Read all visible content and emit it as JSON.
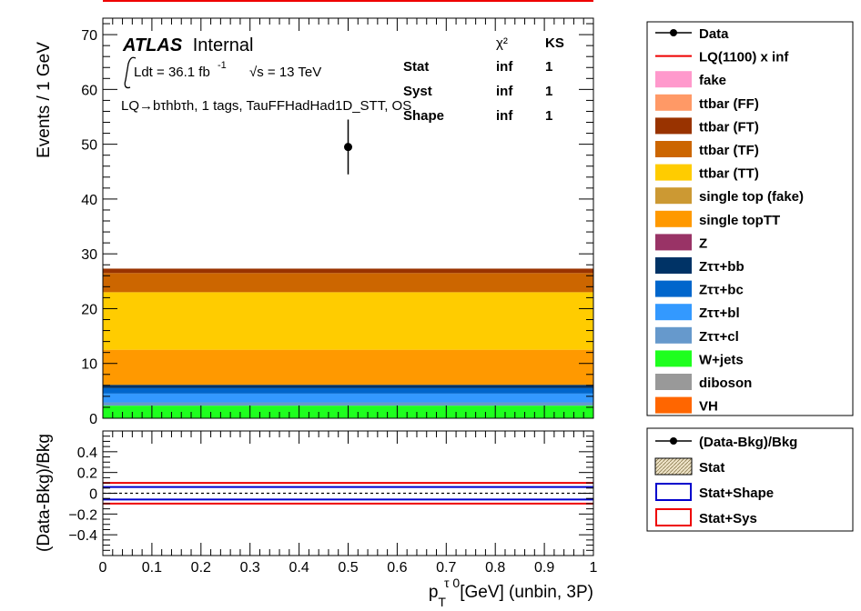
{
  "chart_data": [
    {
      "type": "area",
      "panel": "main",
      "ylabel": "Events / 1 GeV",
      "xlim": [
        0,
        1
      ],
      "ylim": [
        0,
        73
      ],
      "y_ticks": [
        0,
        10,
        20,
        30,
        40,
        50,
        60,
        70
      ],
      "x_ticks": [
        0,
        0.1,
        0.2,
        0.3,
        0.4,
        0.5,
        0.6,
        0.7,
        0.8,
        0.9,
        1
      ],
      "label_atlas": "ATLAS",
      "label_internal": "Internal",
      "lumi_text": "Ldt = 36.1 fb",
      "lumi_exp": "-1",
      "energy_text": "√s = 13 TeV",
      "channel_text": "LQ→bτhbτh, 1 tags, TauFFHadHad1D_STT, OS",
      "stats_table": {
        "headers": [
          "χ²",
          "KS"
        ],
        "rows": [
          {
            "name": "Stat",
            "chi2": "inf",
            "ks": "1"
          },
          {
            "name": "Syst",
            "chi2": "inf",
            "ks": "1"
          },
          {
            "name": "Shape",
            "chi2": "inf",
            "ks": "1"
          }
        ]
      },
      "stack": [
        {
          "name": "W+jets",
          "value": 2.3,
          "color": "#1eff1e"
        },
        {
          "name": "Zττ+cl",
          "value": 0.6,
          "color": "#6699cc"
        },
        {
          "name": "Zττ+bl",
          "value": 1.6,
          "color": "#3399ff"
        },
        {
          "name": "Zττ+bc",
          "value": 1.0,
          "color": "#0066cc"
        },
        {
          "name": "Zττ+bb",
          "value": 0.6,
          "color": "#003366"
        },
        {
          "name": "single topTT",
          "value": 6.4,
          "color": "#ff9900"
        },
        {
          "name": "ttbar (TT)",
          "value": 10.5,
          "color": "#ffcc00"
        },
        {
          "name": "ttbar (TF)",
          "value": 3.5,
          "color": "#cc6600"
        },
        {
          "name": "ttbar (FT)",
          "value": 0.8,
          "color": "#993300"
        }
      ],
      "data_point": {
        "x": 0.5,
        "y": 49.5,
        "err": 5.0
      },
      "signal": {
        "name": "LQ(1100) x inf",
        "color": "#ee0000",
        "y_offscale": true
      }
    },
    {
      "type": "line",
      "panel": "ratio",
      "ylabel": "(Data-Bkg)/Bkg",
      "xlabel": "p_T^{τ 0}[GeV] (unbin, 3P)",
      "xlabel_main": "p",
      "xlabel_sub": "T",
      "xlabel_sup": "τ 0",
      "xlabel_rest": "[GeV] (unbin, 3P)",
      "xlim": [
        0,
        1
      ],
      "ylim": [
        -0.6,
        0.6
      ],
      "y_ticks": [
        -0.4,
        -0.2,
        0,
        0.2,
        0.4
      ],
      "y_tick_labels": [
        "−0.4",
        "−0.2",
        "0",
        "0.2",
        "0.4"
      ],
      "x_tick_labels": [
        "0",
        "0.1",
        "0.2",
        "0.3",
        "0.4",
        "0.5",
        "0.6",
        "0.7",
        "0.8",
        "0.9",
        "1"
      ],
      "bands": {
        "stat_shape": [
          -0.06,
          0.06
        ],
        "stat_sys": [
          -0.1,
          0.1
        ]
      },
      "colors": {
        "stat_shape": "#0000cc",
        "stat_sys": "#ee0000"
      }
    }
  ],
  "legend_main": [
    {
      "label": "Data",
      "kind": "marker",
      "color": "#000000"
    },
    {
      "label": "LQ(1100) x inf",
      "kind": "line",
      "color": "#ee0000"
    },
    {
      "label": "fake",
      "kind": "box",
      "color": "#ff99cc"
    },
    {
      "label": "ttbar (FF)",
      "kind": "box",
      "color": "#ff9966"
    },
    {
      "label": "ttbar (FT)",
      "kind": "box",
      "color": "#993300"
    },
    {
      "label": "ttbar (TF)",
      "kind": "box",
      "color": "#cc6600"
    },
    {
      "label": "ttbar (TT)",
      "kind": "box",
      "color": "#ffcc00"
    },
    {
      "label": "single top (fake)",
      "kind": "box",
      "color": "#cc9933"
    },
    {
      "label": "single topTT",
      "kind": "box",
      "color": "#ff9900"
    },
    {
      "label": "Z",
      "kind": "box",
      "color": "#993366"
    },
    {
      "label": "Zττ+bb",
      "kind": "box",
      "color": "#003366"
    },
    {
      "label": "Zττ+bc",
      "kind": "box",
      "color": "#0066cc"
    },
    {
      "label": "Zττ+bl",
      "kind": "box",
      "color": "#3399ff"
    },
    {
      "label": "Zττ+cl",
      "kind": "box",
      "color": "#6699cc"
    },
    {
      "label": "W+jets",
      "kind": "box",
      "color": "#1eff1e"
    },
    {
      "label": "diboson",
      "kind": "box",
      "color": "#999999"
    },
    {
      "label": "VH",
      "kind": "box",
      "color": "#ff6600"
    }
  ],
  "legend_ratio": [
    {
      "label": "(Data-Bkg)/Bkg",
      "kind": "marker",
      "color": "#000000"
    },
    {
      "label": "Stat",
      "kind": "hatch",
      "color": "#d8c8a0"
    },
    {
      "label": "Stat+Shape",
      "kind": "outline",
      "color": "#0000cc"
    },
    {
      "label": "Stat+Sys",
      "kind": "outline",
      "color": "#ee0000"
    }
  ]
}
